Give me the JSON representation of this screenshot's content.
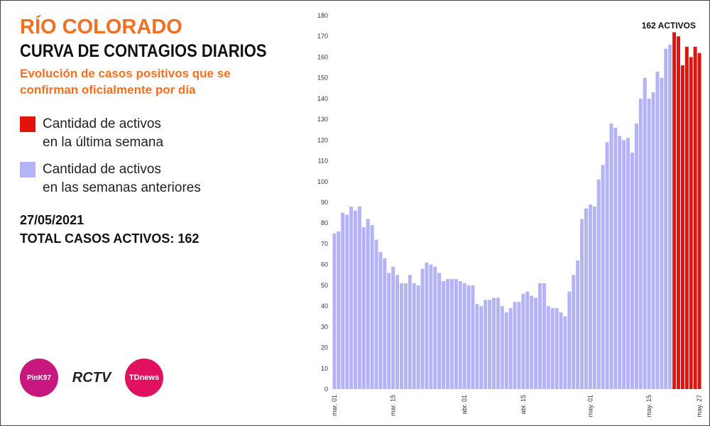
{
  "chart_data": {
    "type": "bar",
    "title": "RÍO COLORADO",
    "subtitle": "CURVA DE CONTAGIOS DIARIOS",
    "description": "Evolución de casos positivos que se confirman oficialmente por día",
    "date": "27/05/2021",
    "total": "TOTAL CASOS ACTIVOS: 162",
    "annotation": "162 ACTIVOS",
    "logos": [
      "PinK97",
      "RCTV",
      "TDnews"
    ],
    "categories": [
      "mar. 01",
      null,
      null,
      null,
      null,
      null,
      null,
      null,
      null,
      null,
      null,
      null,
      null,
      null,
      "mar. 15",
      null,
      null,
      null,
      null,
      null,
      null,
      null,
      null,
      null,
      null,
      null,
      null,
      null,
      null,
      null,
      null,
      "abr. 01",
      null,
      null,
      null,
      null,
      null,
      null,
      null,
      null,
      null,
      null,
      null,
      null,
      null,
      "abr. 15",
      null,
      null,
      null,
      null,
      null,
      null,
      null,
      null,
      null,
      null,
      null,
      null,
      null,
      null,
      null,
      "may. 01",
      null,
      null,
      null,
      null,
      null,
      null,
      null,
      null,
      null,
      null,
      null,
      null,
      null,
      "may. 15",
      null,
      null,
      null,
      null,
      null,
      null,
      null,
      null,
      null,
      null,
      null,
      "may. 27"
    ],
    "series": [
      {
        "name": "Cantidad de activos\nen la última semana",
        "color": "#e3120b",
        "values": [
          null,
          null,
          null,
          null,
          null,
          null,
          null,
          null,
          null,
          null,
          null,
          null,
          null,
          null,
          null,
          null,
          null,
          null,
          null,
          null,
          null,
          null,
          null,
          null,
          null,
          null,
          null,
          null,
          null,
          null,
          null,
          null,
          null,
          null,
          null,
          null,
          null,
          null,
          null,
          null,
          null,
          null,
          null,
          null,
          null,
          null,
          null,
          null,
          null,
          null,
          null,
          null,
          null,
          null,
          null,
          null,
          null,
          null,
          null,
          null,
          null,
          null,
          null,
          null,
          null,
          null,
          null,
          null,
          null,
          null,
          null,
          null,
          null,
          null,
          null,
          null,
          null,
          null,
          null,
          null,
          null,
          172,
          170,
          156,
          165,
          160,
          165,
          162
        ]
      },
      {
        "name": "Cantidad de activos\nen las semanas anteriores",
        "color": "#b3b3f5",
        "values": [
          75,
          76,
          85,
          84,
          88,
          86,
          88,
          78,
          82,
          79,
          72,
          66,
          63,
          56,
          59,
          55,
          51,
          51,
          55,
          51,
          50,
          58,
          61,
          60,
          59,
          56,
          52,
          53,
          53,
          53,
          52,
          51,
          50,
          50,
          41,
          40,
          43,
          43,
          44,
          44,
          40,
          37,
          39,
          42,
          42,
          46,
          47,
          45,
          44,
          51,
          51,
          40,
          39,
          39,
          37,
          35,
          47,
          55,
          62,
          82,
          87,
          89,
          88,
          101,
          108,
          119,
          128,
          126,
          122,
          120,
          121,
          114,
          128,
          140,
          150,
          140,
          143,
          153,
          150,
          164,
          166,
          null,
          null,
          null,
          null,
          null,
          null,
          null
        ]
      }
    ],
    "ylim": [
      0,
      180
    ],
    "yticks": [
      0,
      10,
      20,
      30,
      40,
      50,
      60,
      70,
      80,
      90,
      100,
      110,
      120,
      130,
      140,
      150,
      160,
      170,
      180
    ],
    "grid": false
  }
}
